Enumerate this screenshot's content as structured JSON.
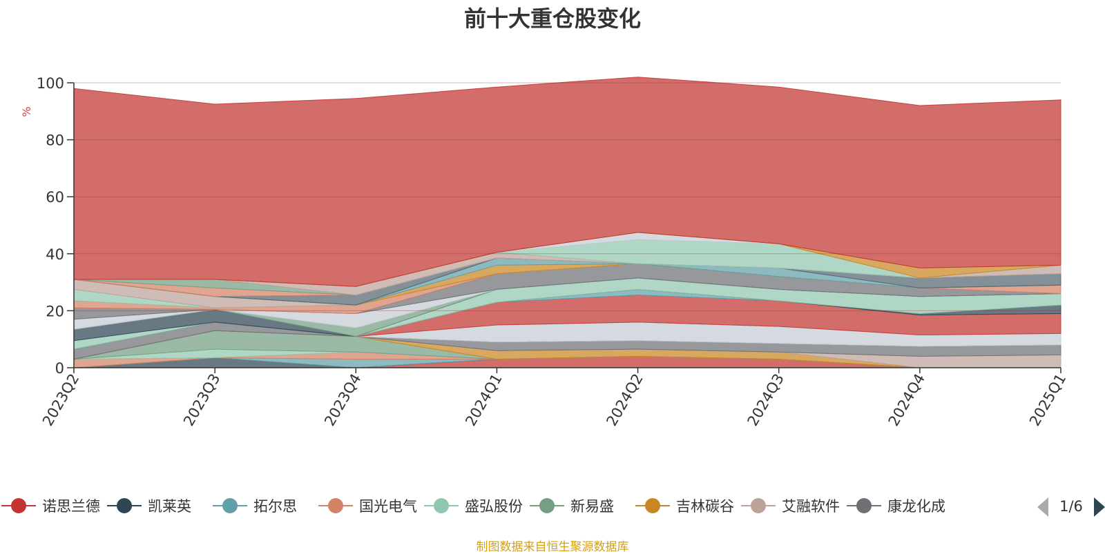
{
  "title": "前十大重仓股变化",
  "source_note": "制图数据来自恒生聚源数据库",
  "pager": {
    "text": "1/6"
  },
  "chart_data": {
    "type": "area",
    "stacked": true,
    "categories": [
      "2023Q2",
      "2023Q3",
      "2023Q4",
      "2024Q1",
      "2024Q2",
      "2024Q3",
      "2024Q4",
      "2025Q1"
    ],
    "ylabel": "%",
    "ylim": [
      0,
      100
    ],
    "yticks": [
      0,
      20,
      40,
      60,
      80,
      100
    ],
    "grid": true,
    "legend_position": "bottom",
    "series": [
      {
        "name": "诺思兰德",
        "color": "#c23531",
        "values": [
          0,
          0,
          0,
          3,
          4,
          3,
          0,
          0
        ]
      },
      {
        "name": "凯莱英",
        "color": "#2f4554",
        "values": [
          0,
          3.5,
          0,
          0,
          0,
          0,
          0,
          0
        ]
      },
      {
        "name": "拓尔思",
        "color": "#61a0a8",
        "values": [
          0,
          0,
          3,
          0,
          0,
          0,
          0,
          0
        ]
      },
      {
        "name": "国光电气",
        "color": "#d48265",
        "values": [
          3,
          0,
          2.5,
          0,
          0,
          0,
          0,
          0
        ]
      },
      {
        "name": "盛弘股份",
        "color": "#91c7ae",
        "values": [
          0,
          3,
          0,
          0,
          0,
          0,
          0,
          0
        ]
      },
      {
        "name": "新易盛",
        "color": "#749f83",
        "values": [
          0,
          6.5,
          5.5,
          0,
          0,
          0,
          0,
          0
        ]
      },
      {
        "name": "吉林碳谷",
        "color": "#ca8622",
        "values": [
          0,
          0,
          0,
          3,
          2.5,
          2.5,
          0,
          0
        ]
      },
      {
        "name": "艾融软件",
        "color": "#bda29a",
        "values": [
          0,
          0,
          0,
          0,
          0,
          0,
          4,
          4.5
        ]
      },
      {
        "name": "康龙化成",
        "color": "#6e7074",
        "values": [
          3.5,
          3,
          0,
          3,
          3,
          3,
          3.5,
          3.5
        ]
      },
      {
        "name": "",
        "color": "#546570",
        "values": [
          0,
          0,
          0,
          0,
          0,
          0,
          0,
          0
        ]
      },
      {
        "name": "",
        "color": "#c4ccd3",
        "values": [
          0,
          0,
          0,
          6,
          6.5,
          6,
          4,
          4
        ]
      },
      {
        "name": "",
        "color": "#c23531",
        "values": [
          0,
          0,
          0,
          8,
          9.5,
          9,
          7,
          7
        ]
      },
      {
        "name": "",
        "color": "#61a0a8",
        "values": [
          0,
          0,
          0,
          0,
          2,
          0,
          0,
          0
        ]
      },
      {
        "name": "",
        "color": "#2f4554",
        "values": [
          0,
          0,
          0,
          0,
          0,
          0,
          0.5,
          3
        ]
      },
      {
        "name": "",
        "color": "#91c7ae",
        "values": [
          3,
          0,
          0,
          4.5,
          4,
          4,
          6,
          4
        ]
      },
      {
        "name": "",
        "color": "#2f4554",
        "values": [
          4,
          4.5,
          0,
          0,
          0,
          0,
          0,
          0
        ]
      },
      {
        "name": "",
        "color": "#749f83",
        "values": [
          0,
          0,
          3,
          0,
          0,
          0,
          0,
          0
        ]
      },
      {
        "name": "",
        "color": "#c4ccd3",
        "values": [
          3.5,
          0,
          5,
          0,
          0,
          0,
          0,
          0
        ]
      },
      {
        "name": "",
        "color": "#6e7074",
        "values": [
          4,
          0,
          0,
          5.5,
          5,
          4.5,
          3,
          0
        ]
      },
      {
        "name": "",
        "color": "#d48265",
        "values": [
          2.5,
          0.5,
          3,
          0,
          0,
          0,
          0,
          3
        ]
      },
      {
        "name": "",
        "color": "#91c7ae",
        "values": [
          4,
          0,
          0,
          0,
          0,
          0,
          0,
          0
        ]
      },
      {
        "name": "",
        "color": "#bda29a",
        "values": [
          3.5,
          4,
          0,
          0,
          0,
          0,
          0,
          0
        ]
      },
      {
        "name": "",
        "color": "#ca8622",
        "values": [
          0,
          0,
          0,
          3,
          0,
          0,
          0,
          0
        ]
      },
      {
        "name": "",
        "color": "#61a0a8",
        "values": [
          0,
          0,
          0,
          2.5,
          0,
          3,
          0,
          0
        ]
      },
      {
        "name": "",
        "color": "#546570",
        "values": [
          0,
          0,
          3.5,
          0,
          0,
          0,
          3.5,
          4
        ]
      },
      {
        "name": "",
        "color": "#d48265",
        "values": [
          0,
          3,
          0,
          0,
          0,
          0,
          0,
          0
        ]
      },
      {
        "name": "",
        "color": "#749f83",
        "values": [
          0,
          3,
          0,
          0,
          0,
          0,
          0,
          0
        ]
      },
      {
        "name": "",
        "color": "#bda29a",
        "values": [
          0,
          0,
          3,
          2,
          0,
          0,
          0,
          3
        ]
      },
      {
        "name": "",
        "color": "#91c7ae",
        "values": [
          0,
          0,
          0,
          0,
          8.5,
          8.5,
          0,
          0
        ]
      },
      {
        "name": "",
        "color": "#c4ccd3",
        "values": [
          0,
          0,
          0,
          0,
          2.5,
          0,
          0,
          0
        ]
      },
      {
        "name": "",
        "color": "#ca8622",
        "values": [
          0,
          0,
          0,
          0,
          0,
          0,
          3.5,
          0
        ]
      },
      {
        "name": "",
        "color": "#c23531",
        "values": [
          67,
          61.5,
          66,
          58,
          54.5,
          55,
          57,
          58
        ]
      }
    ]
  }
}
